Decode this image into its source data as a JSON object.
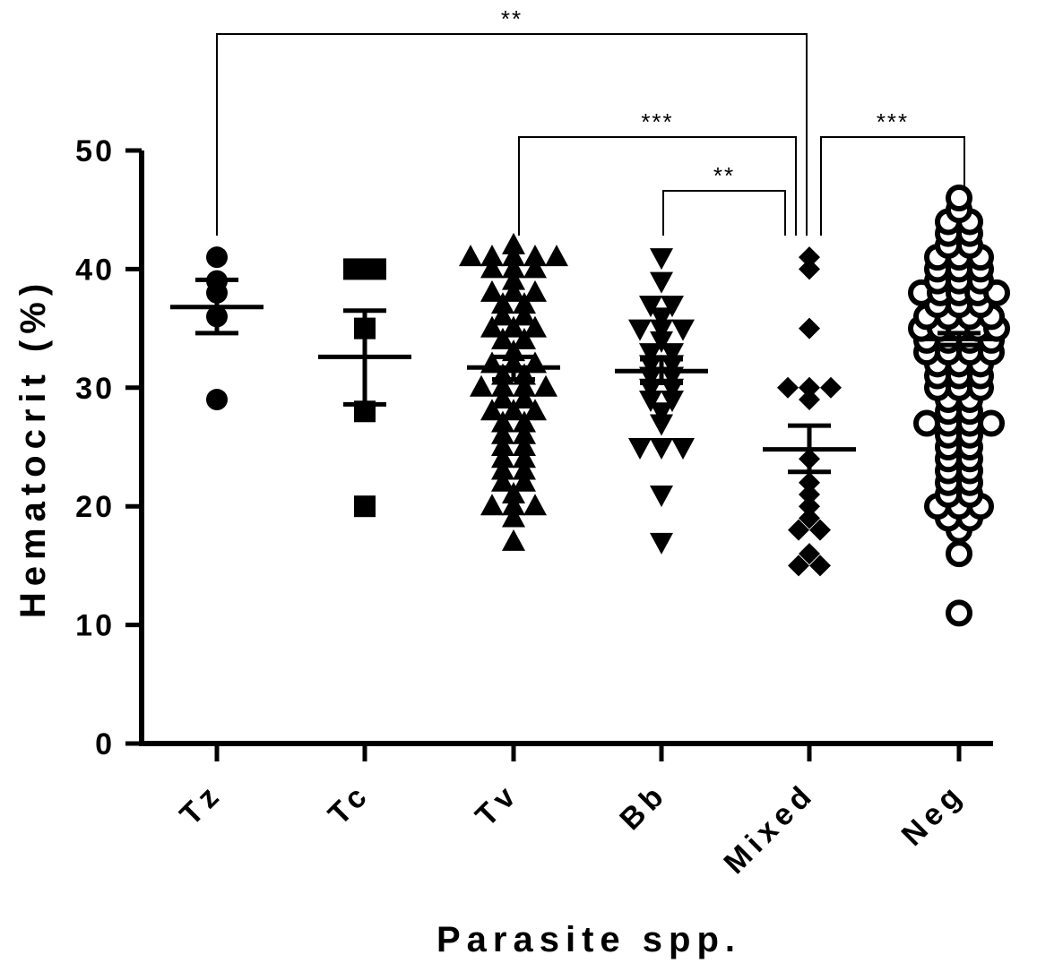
{
  "chart_data": {
    "type": "scatter",
    "xlabel": "Parasite spp.",
    "ylabel": "Hematocrit (%)",
    "ylim": [
      0,
      50
    ],
    "yticks": [
      "0",
      "10",
      "20",
      "30",
      "40",
      "50"
    ],
    "categories": [
      "Tz",
      "Tc",
      "Tv",
      "Bb",
      "Mixed",
      "Neg"
    ],
    "groups": [
      {
        "name": "Tz",
        "marker": "circle",
        "mean": 36.8,
        "sem_low": 34.6,
        "sem_high": 39.1,
        "values": [
          41,
          38,
          39,
          36,
          29
        ]
      },
      {
        "name": "Tc",
        "marker": "square",
        "mean": 32.6,
        "sem_low": 28.6,
        "sem_high": 36.5,
        "values": [
          40,
          40,
          35,
          28,
          20
        ]
      },
      {
        "name": "Tv",
        "marker": "triangle-up",
        "mean": 31.7,
        "sem_low": 30.7,
        "sem_high": 32.6,
        "values": [
          41,
          41,
          41,
          41,
          41,
          40,
          40,
          40,
          39,
          38,
          38,
          38,
          37,
          37,
          36,
          36,
          35,
          35,
          35,
          34,
          34,
          33,
          32,
          32,
          32,
          31,
          31,
          30,
          30,
          30,
          30,
          29,
          29,
          28,
          28,
          28,
          27,
          27,
          26,
          26,
          25,
          25,
          24,
          24,
          23,
          23,
          22,
          22,
          21,
          20,
          20,
          20,
          19,
          17,
          42
        ]
      },
      {
        "name": "Bb",
        "marker": "triangle-down",
        "mean": 31.4,
        "sem_low": 30.4,
        "sem_high": 32.4,
        "values": [
          41,
          39,
          37,
          37,
          36,
          35,
          35,
          35,
          34,
          33,
          33,
          32,
          32,
          31,
          31,
          30,
          30,
          29,
          29,
          28,
          27,
          25,
          25,
          25,
          21,
          17
        ]
      },
      {
        "name": "Mixed",
        "marker": "diamond",
        "mean": 24.8,
        "sem_low": 22.9,
        "sem_high": 26.8,
        "values": [
          41,
          40,
          35,
          30,
          30,
          30,
          29,
          24,
          22,
          21,
          20,
          19,
          18,
          18,
          16,
          15,
          15
        ]
      },
      {
        "name": "Neg",
        "marker": "open-circle",
        "mean": 34.1,
        "sem_low": 33.6,
        "sem_high": 34.6,
        "values": [
          46,
          45,
          44,
          44,
          43,
          43,
          42,
          42,
          41,
          41,
          41,
          40,
          40,
          40,
          39,
          39,
          39,
          38,
          38,
          38,
          38,
          38,
          37,
          37,
          37,
          36,
          36,
          36,
          36,
          35,
          35,
          35,
          35,
          35,
          34,
          34,
          34,
          34,
          33,
          33,
          33,
          33,
          32,
          32,
          32,
          31,
          31,
          31,
          30,
          30,
          30,
          29,
          29,
          28,
          28,
          27,
          27,
          27,
          27,
          26,
          26,
          25,
          25,
          24,
          24,
          23,
          23,
          22,
          22,
          21,
          21,
          20,
          20,
          20,
          19,
          19,
          18,
          16,
          11
        ]
      }
    ],
    "significance": [
      {
        "from": "Tz",
        "to": "Mixed",
        "label": "**"
      },
      {
        "from": "Tv",
        "to": "Mixed",
        "label": "***"
      },
      {
        "from": "Bb",
        "to": "Mixed",
        "label": "**"
      },
      {
        "from": "Mixed",
        "to": "Neg",
        "label": "***"
      }
    ]
  }
}
